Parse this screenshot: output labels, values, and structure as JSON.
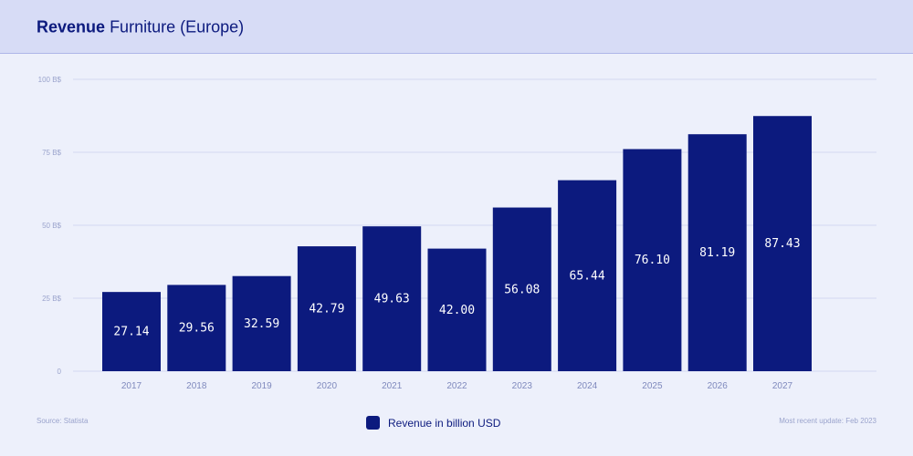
{
  "header": {
    "title_bold": "Revenue",
    "title_rest": "Furniture (Europe)"
  },
  "chart_data": {
    "type": "bar",
    "title": "Revenue Furniture (Europe)",
    "categories": [
      "2017",
      "2018",
      "2019",
      "2020",
      "2021",
      "2022",
      "2023",
      "2024",
      "2025",
      "2026",
      "2027"
    ],
    "series": [
      {
        "name": "Revenue in billion USD",
        "values": [
          27.14,
          29.56,
          32.59,
          42.79,
          49.63,
          42.0,
          56.08,
          65.44,
          76.1,
          81.19,
          87.43
        ],
        "labels": [
          "27.14",
          "29.56",
          "32.59",
          "42.79",
          "49.63",
          "42.00",
          "56.08",
          "65.44",
          "76.10",
          "81.19",
          "87.43"
        ]
      }
    ],
    "yticks": [
      {
        "value": 0,
        "label": "0"
      },
      {
        "value": 25,
        "label": "25 B$"
      },
      {
        "value": 50,
        "label": "50 B$"
      },
      {
        "value": 75,
        "label": "75 B$"
      },
      {
        "value": 100,
        "label": "100 B$"
      }
    ],
    "ylim": [
      0,
      100
    ],
    "grid": true,
    "legend_position": "bottom-center",
    "bar_color": "#0c1a7e",
    "grid_color": "#d4d9f2"
  },
  "footer": {
    "source": "Source: Statista",
    "update": "Most recent update: Feb 2023"
  },
  "legend": {
    "label": "Revenue in billion USD"
  }
}
